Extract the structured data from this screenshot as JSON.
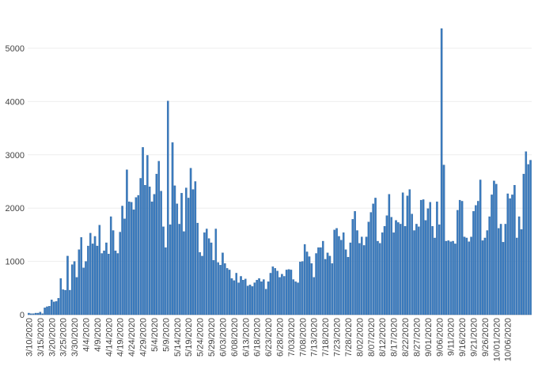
{
  "chart_data": {
    "type": "bar",
    "start_date": "2020-03-10",
    "bar_color": "#3a7bbf",
    "bar_edge_color": "#2b5f96",
    "grid": true,
    "ylim": [
      0,
      5500
    ],
    "yticks": [
      0,
      1000,
      2000,
      3000,
      4000,
      5000
    ],
    "ytick_labels": [
      "0",
      "1000",
      "2000",
      "3000",
      "4000",
      "5000"
    ],
    "xtick_labels": [
      "3/10/2020",
      "3/15/2020",
      "3/20/2020",
      "3/25/2020",
      "3/30/2020",
      "4/4/2020",
      "4/9/2020",
      "4/14/2020",
      "4/19/2020",
      "4/24/2020",
      "4/29/2020",
      "5/4/2020",
      "5/9/2020",
      "5/14/2020",
      "5/19/2020",
      "5/24/2020",
      "5/29/2020",
      "6/03/2020",
      "6/08/2020",
      "6/13/2020",
      "6/18/2020",
      "6/23/2020",
      "6/28/2020",
      "7/03/2020",
      "7/08/2020",
      "7/13/2020",
      "7/18/2020",
      "7/23/2020",
      "7/28/2020",
      "8/02/2020",
      "8/07/2020",
      "8/12/2020",
      "8/17/2020",
      "8/22/2020",
      "8/27/2020",
      "9/01/2020",
      "9/06/2020",
      "9/11/2020",
      "9/16/2020",
      "9/21/2020",
      "9/26/2020",
      "10/01/2020",
      "10/06/2020"
    ],
    "values": [
      30,
      20,
      20,
      30,
      30,
      50,
      20,
      130,
      150,
      160,
      280,
      240,
      250,
      310,
      680,
      470,
      460,
      1100,
      460,
      940,
      1000,
      700,
      1220,
      1450,
      880,
      1000,
      1290,
      1530,
      1330,
      1470,
      1290,
      1680,
      1150,
      1200,
      1350,
      1140,
      1840,
      1580,
      1200,
      1150,
      1550,
      2040,
      1800,
      2720,
      2120,
      2110,
      1970,
      2200,
      2240,
      2560,
      3140,
      2430,
      2990,
      2400,
      2120,
      2260,
      2640,
      2880,
      2320,
      1650,
      1260,
      4010,
      1690,
      3230,
      2420,
      2080,
      1700,
      2280,
      1560,
      2380,
      2190,
      2750,
      2350,
      2500,
      1720,
      1170,
      1100,
      1540,
      1610,
      1430,
      1350,
      1020,
      1610,
      980,
      930,
      1160,
      960,
      870,
      840,
      680,
      640,
      780,
      600,
      720,
      650,
      670,
      540,
      560,
      530,
      600,
      650,
      680,
      620,
      660,
      480,
      620,
      780,
      900,
      870,
      820,
      700,
      760,
      720,
      840,
      850,
      840,
      660,
      620,
      600,
      990,
      1000,
      1320,
      1180,
      1090,
      960,
      700,
      1150,
      1260,
      1260,
      1380,
      1040,
      1160,
      1100,
      960,
      1590,
      1620,
      1470,
      1400,
      1540,
      1220,
      1080,
      1350,
      1790,
      1940,
      1580,
      1340,
      1460,
      1300,
      1460,
      1740,
      1920,
      2080,
      2190,
      1380,
      1340,
      1540,
      1660,
      1860,
      2260,
      1830,
      1540,
      1770,
      1730,
      1700,
      2290,
      1660,
      2230,
      2350,
      1890,
      1580,
      1700,
      1650,
      2150,
      2160,
      1770,
      1990,
      2110,
      1660,
      1440,
      2120,
      1690,
      5370,
      2810,
      1380,
      1390,
      1370,
      1380,
      1330,
      1960,
      2150,
      2130,
      1460,
      1440,
      1370,
      1460,
      1940,
      2050,
      2130,
      2530,
      1390,
      1440,
      1580,
      1840,
      2250,
      2510,
      2450,
      1620,
      1700,
      1360,
      1700,
      2270,
      2180,
      2250,
      2430,
      1440,
      1840,
      1600,
      2640,
      3060,
      2820,
      2900
    ]
  }
}
